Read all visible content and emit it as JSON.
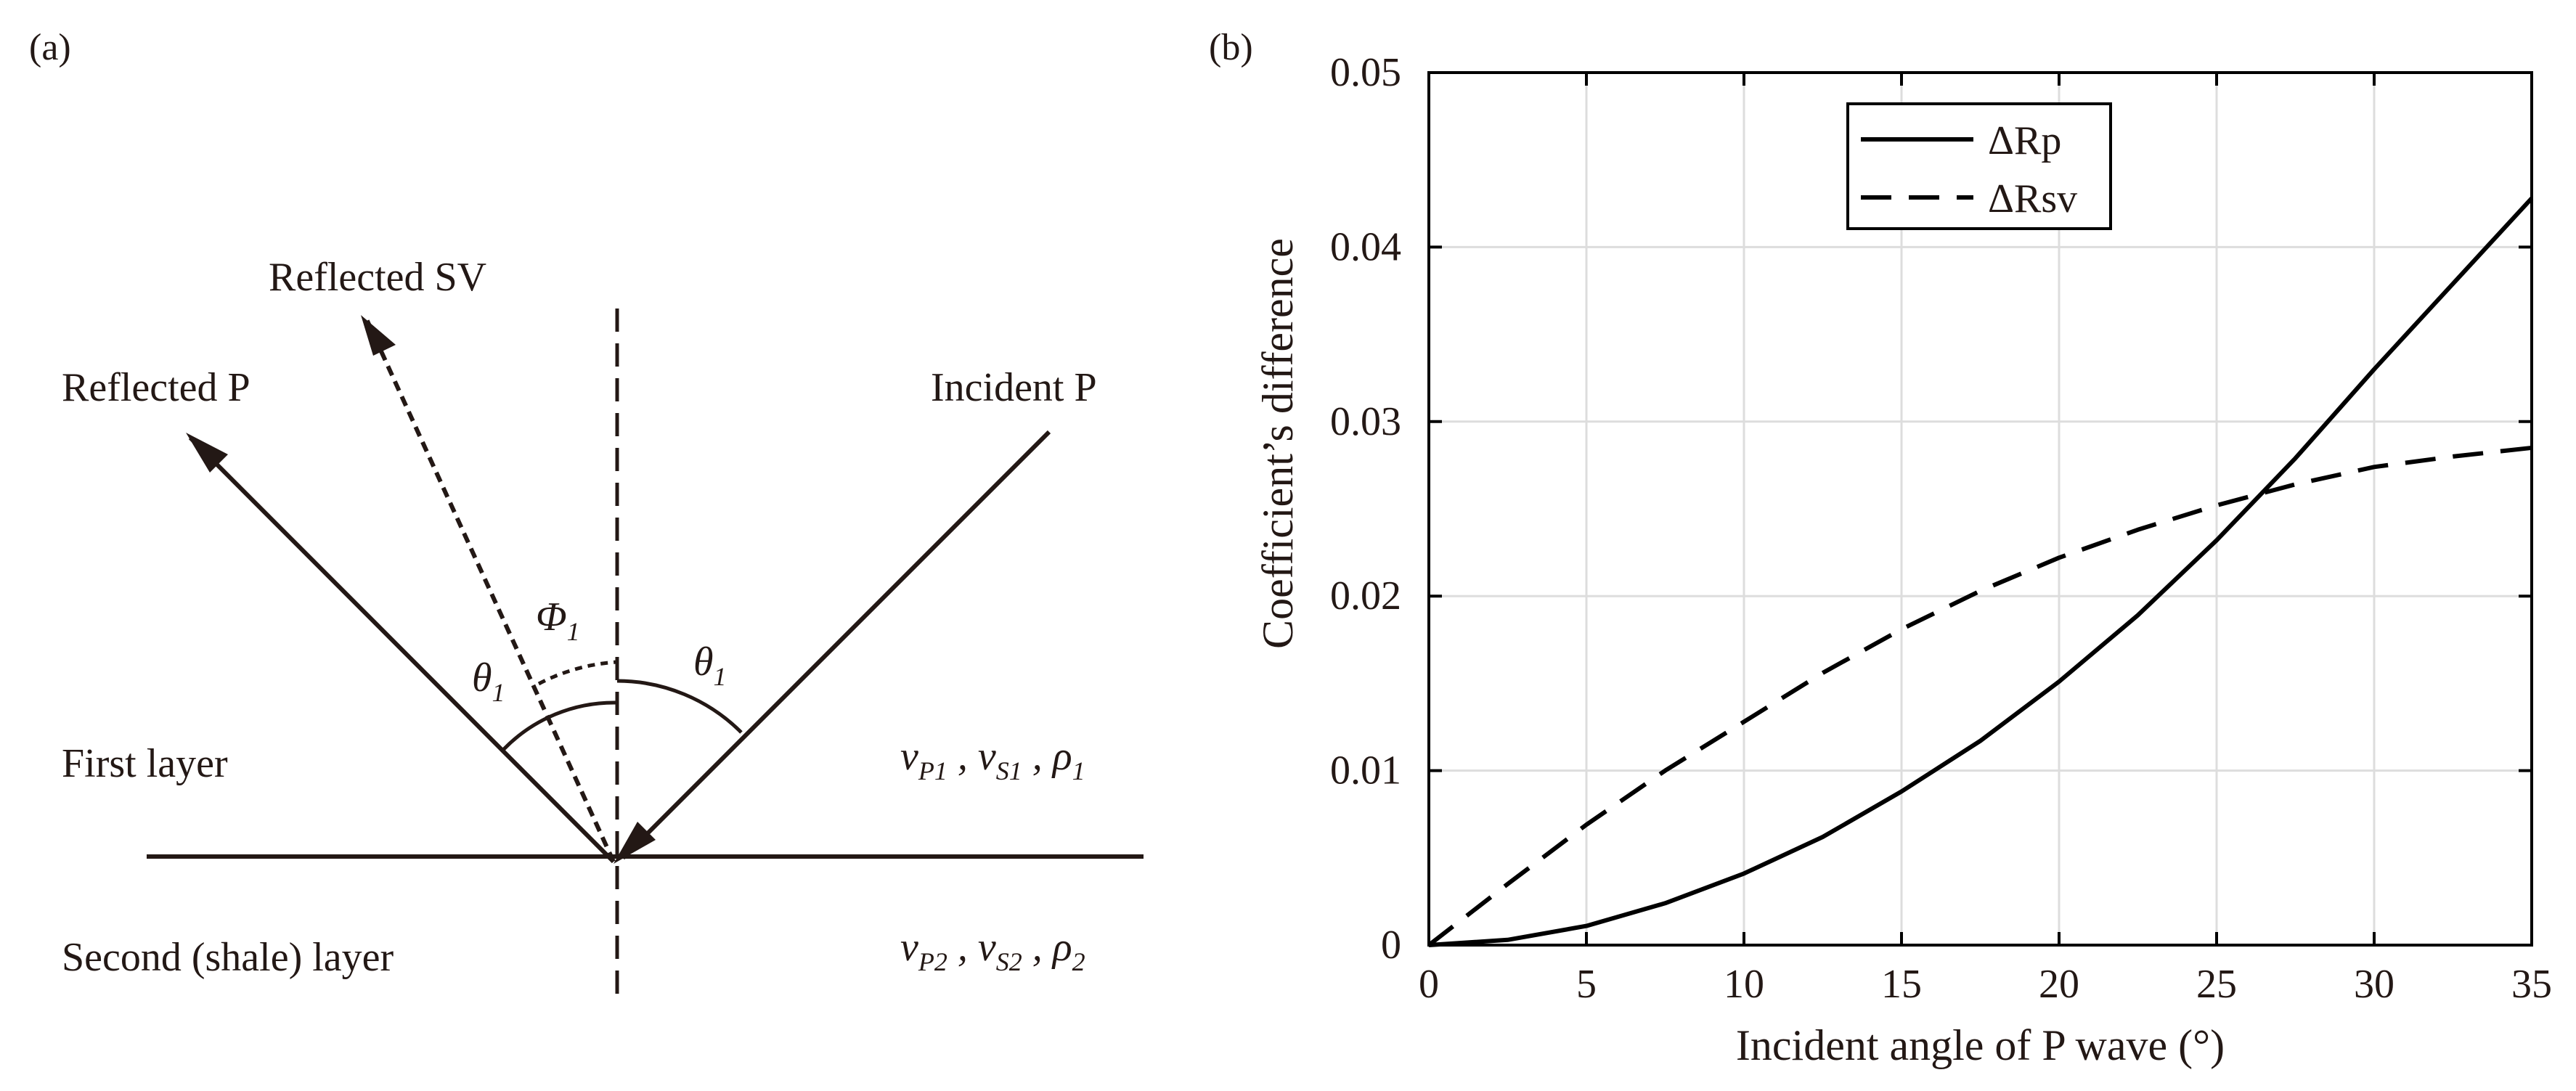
{
  "panel_a": {
    "label": "(a)",
    "reflected_sv": "Reflected SV",
    "reflected_p": "Reflected P",
    "incident_p": "Incident P",
    "first_layer": "First layer",
    "second_layer": "Second (shale) layer",
    "theta_symbol": "θ",
    "theta_sub": "1",
    "phi_symbol": "Φ",
    "phi_sub": "1",
    "v_symbol": "v",
    "rho_symbol": "ρ",
    "comma": " , ",
    "layer1_vp_sub": "P1",
    "layer1_vs_sub": "S1",
    "layer1_rho_sub": "1",
    "layer2_vp_sub": "P2",
    "layer2_vs_sub": "S2",
    "layer2_rho_sub": "2",
    "line_color": "#231815"
  },
  "panel_b": {
    "label": "(b)"
  },
  "chart_data": {
    "type": "line",
    "xlabel": "Incident angle of P wave (°)",
    "ylabel": "Coefficient’s difference",
    "xlim": [
      0,
      35
    ],
    "ylim": [
      0,
      0.05
    ],
    "xticks": [
      0,
      5,
      10,
      15,
      20,
      25,
      30,
      35
    ],
    "xtick_labels": [
      "0",
      "5",
      "10",
      "15",
      "20",
      "25",
      "30",
      "35"
    ],
    "yticks": [
      0,
      0.01,
      0.02,
      0.03,
      0.04,
      0.05
    ],
    "ytick_labels": [
      "0",
      "0.01",
      "0.02",
      "0.03",
      "0.04",
      "0.05"
    ],
    "grid": true,
    "legend_position": "top-center",
    "x": [
      0,
      2.5,
      5,
      7.5,
      10,
      12.5,
      15,
      17.5,
      20,
      22.5,
      25,
      27.5,
      30,
      32.5,
      35
    ],
    "series": [
      {
        "name": "ΔRp",
        "style": "solid",
        "values": [
          0,
          0.0003,
          0.0011,
          0.0024,
          0.0041,
          0.0062,
          0.0088,
          0.0117,
          0.0151,
          0.0189,
          0.0232,
          0.0279,
          0.033,
          0.0379,
          0.0428
        ]
      },
      {
        "name": "ΔRsv",
        "style": "dashed",
        "values": [
          0,
          0.0035,
          0.0069,
          0.01,
          0.0128,
          0.0156,
          0.0181,
          0.0203,
          0.0222,
          0.0238,
          0.0252,
          0.0264,
          0.0274,
          0.028,
          0.0285
        ]
      }
    ],
    "line_color": "#000000",
    "grid_color": "#dddddd"
  }
}
